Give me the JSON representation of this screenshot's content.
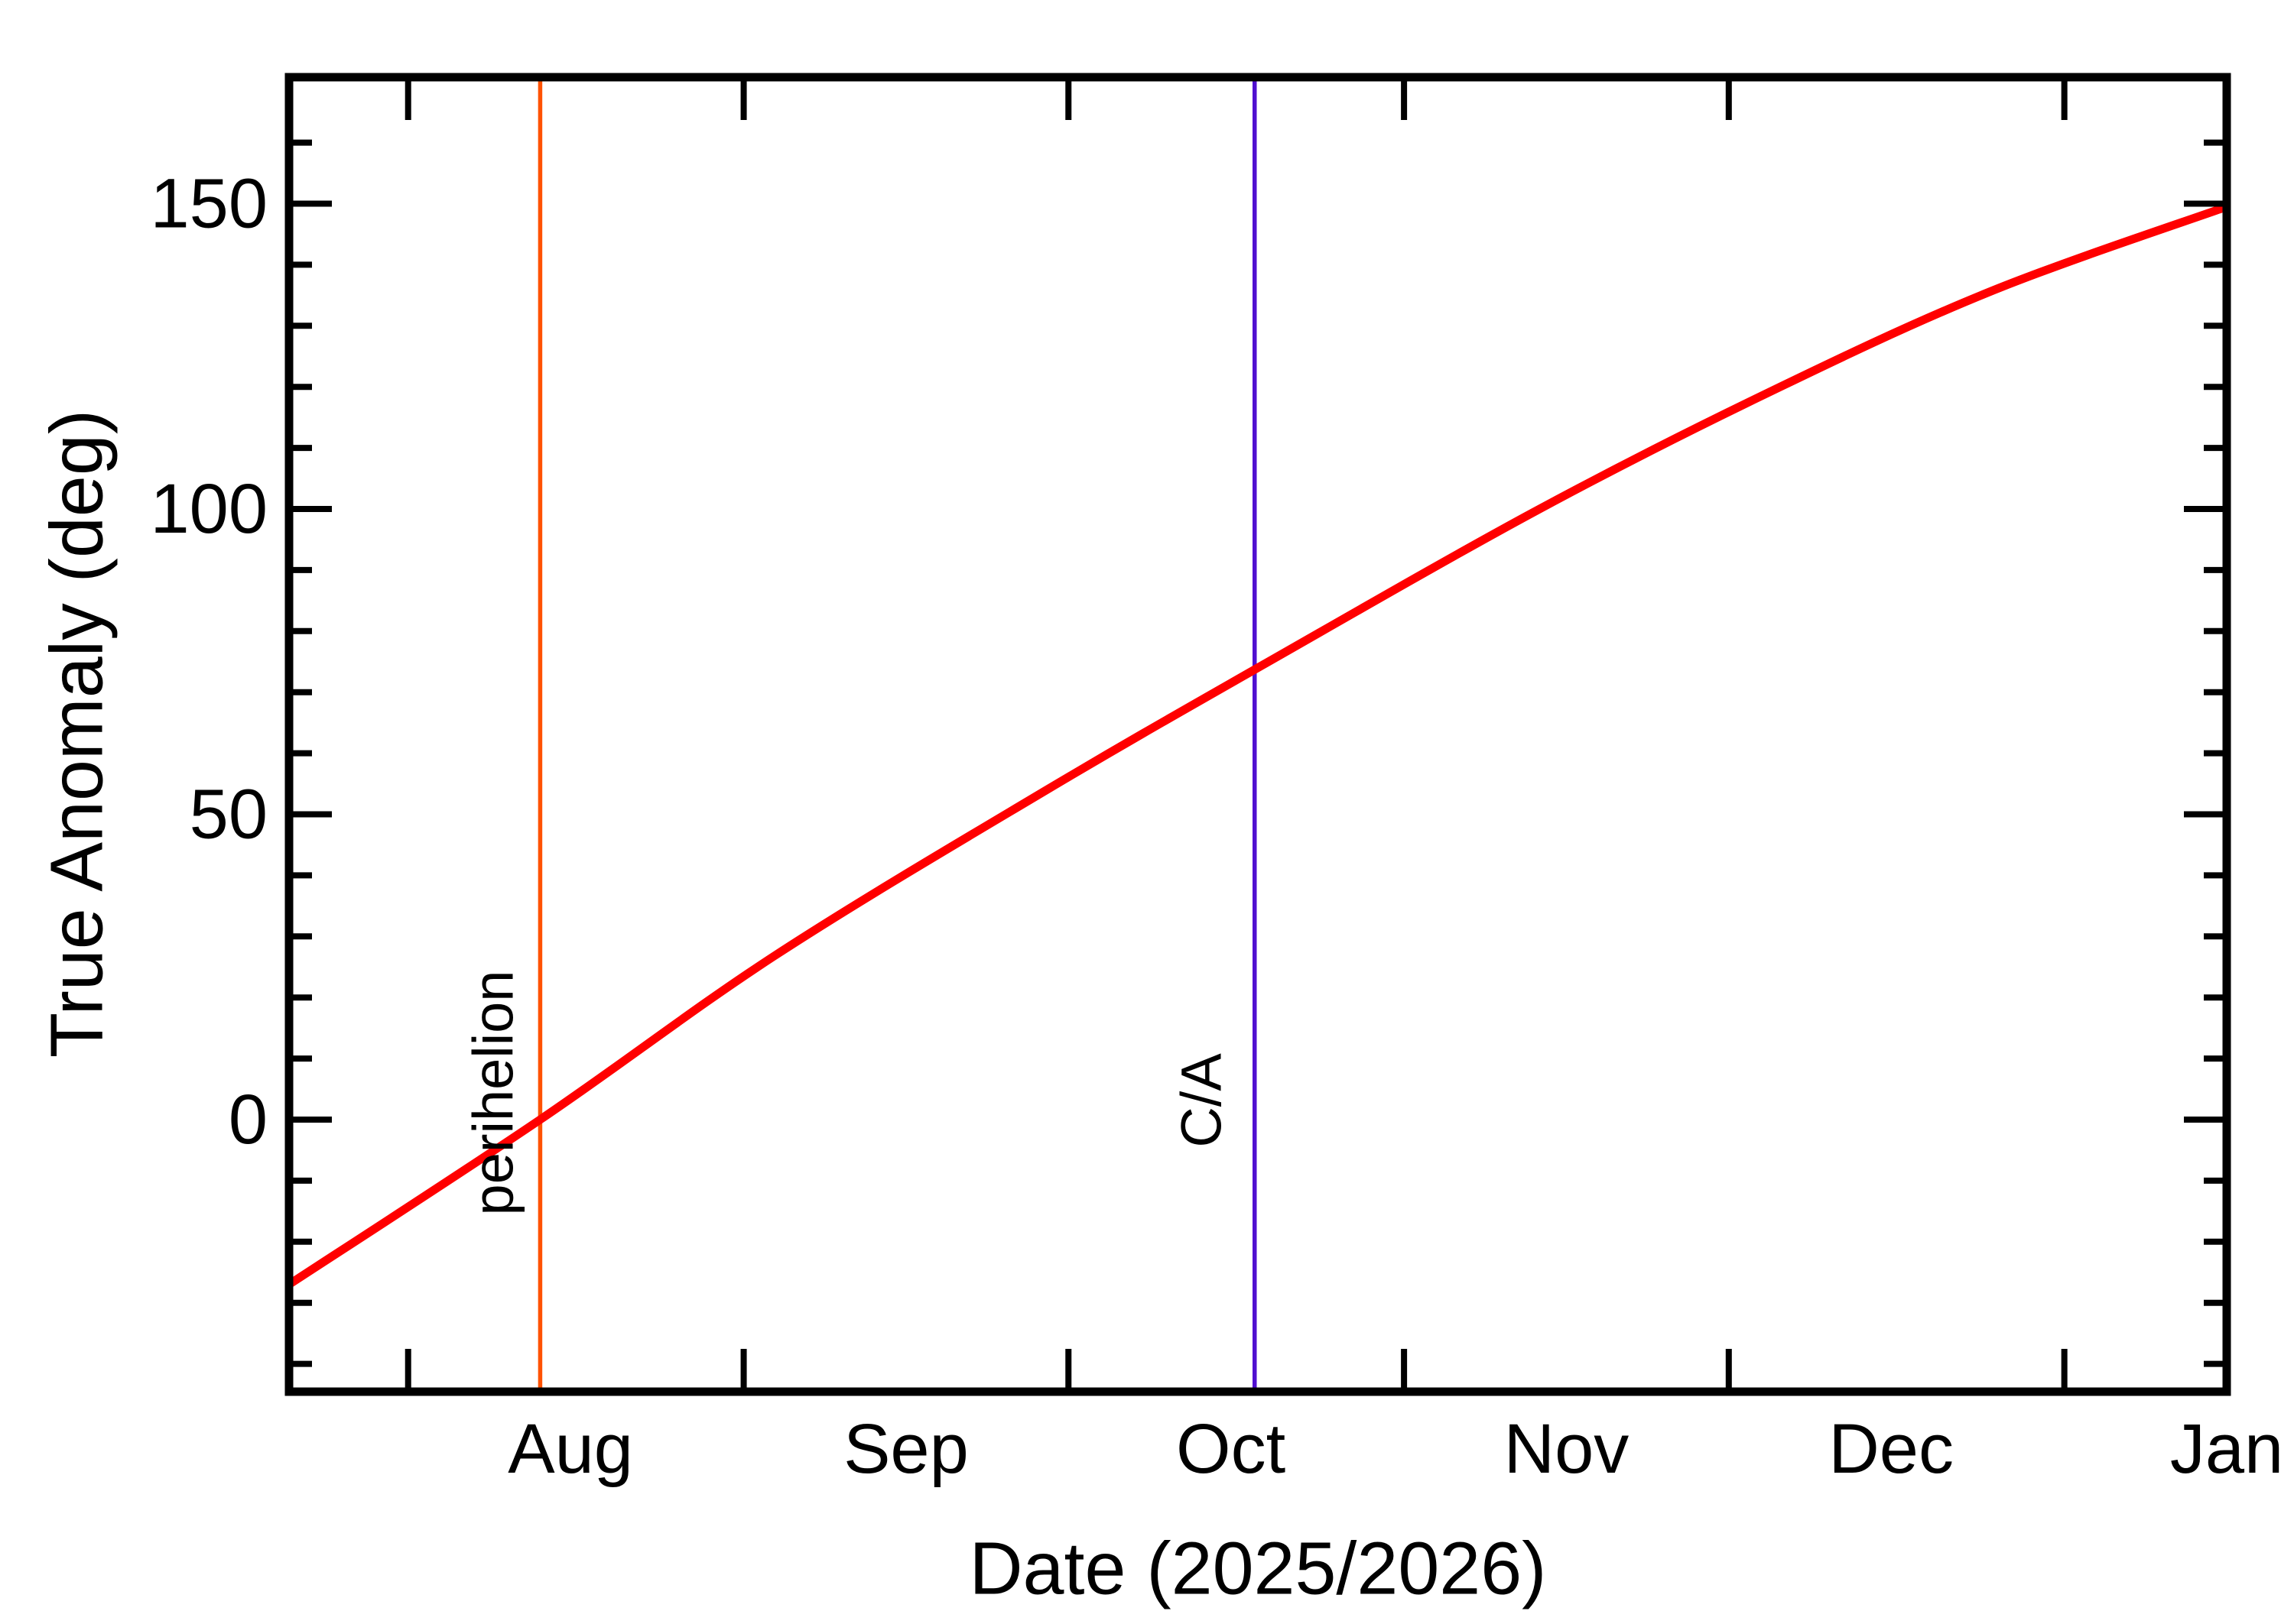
{
  "figure": {
    "background": "#ffffff",
    "axis_color": "#000000"
  },
  "chart_data": {
    "type": "line",
    "title": "",
    "xlabel": "Date (2025/2026)",
    "ylabel": "True Anomaly (deg)",
    "x_axis": {
      "start_date": "2025-07-21",
      "end_date": "2026-01-16",
      "span_days": 179,
      "grid": false,
      "month_ticks": [
        {
          "label": "Aug",
          "boundary_day": 11,
          "label_day": 26
        },
        {
          "label": "Sep",
          "boundary_day": 42,
          "label_day": 57
        },
        {
          "label": "Oct",
          "boundary_day": 72,
          "label_day": 87
        },
        {
          "label": "Nov",
          "boundary_day": 103,
          "label_day": 118
        },
        {
          "label": "Dec",
          "boundary_day": 133,
          "label_day": 148
        },
        {
          "label": "Jan",
          "boundary_day": 164,
          "label_day": 179
        }
      ]
    },
    "y_axis": {
      "min": -44.6,
      "max": 170.6,
      "major_ticks": [
        0,
        50,
        100,
        150
      ],
      "major_tick_labels": [
        "0",
        "50",
        "100",
        "150"
      ],
      "minor_tick_start": -40,
      "minor_tick_end": 160,
      "minor_tick_step": 10,
      "grid": false
    },
    "series": [
      {
        "name": "true-anomaly",
        "color": "#ff0000",
        "stroke_width": 11,
        "points": [
          {
            "date": "2025-07-21",
            "day": 0,
            "deg": -27.0
          },
          {
            "date": "2025-08-13",
            "day": 23.2,
            "deg": 0.0
          },
          {
            "date": "2025-09-04",
            "day": 45,
            "deg": 27.0
          },
          {
            "date": "2025-09-29",
            "day": 70,
            "deg": 54.0
          },
          {
            "date": "2025-10-19",
            "day": 90,
            "deg": 74.5
          },
          {
            "date": "2025-11-13",
            "day": 115,
            "deg": 99.5
          },
          {
            "date": "2025-12-04",
            "day": 136,
            "deg": 118.5
          },
          {
            "date": "2025-12-25",
            "day": 157,
            "deg": 135.5
          },
          {
            "date": "2026-01-16",
            "day": 179,
            "deg": 149.5
          }
        ]
      }
    ],
    "annotations": [
      {
        "label": "perihelion",
        "date": "2025-08-13",
        "day": 23.2,
        "deg_at_line": 0.0,
        "color": "#ff5202"
      },
      {
        "label": "C/A",
        "date": "2025-10-18",
        "day": 89.2,
        "deg_at_line": 74.3,
        "color": "#500fd0"
      }
    ],
    "legend": null
  }
}
